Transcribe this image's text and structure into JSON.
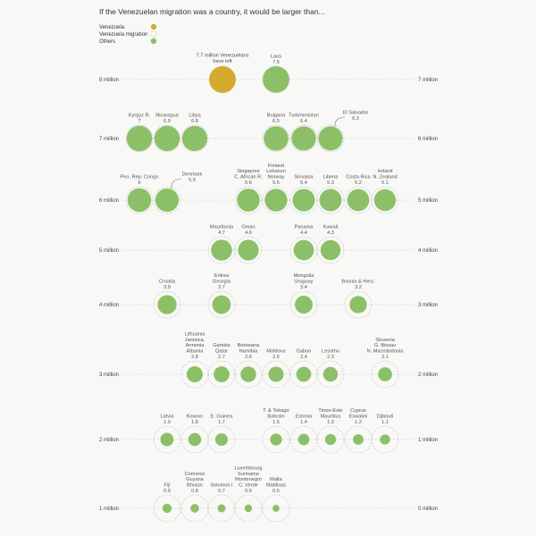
{
  "chart_data": {
    "type": "scatter",
    "title": "If the Venezuelan migration was a country, it would be larger than...",
    "legend": [
      {
        "label": "Venezuela",
        "color": "#d4ab2e"
      },
      {
        "label": "Venezuela migration",
        "color": "none"
      },
      {
        "label": "Others",
        "color": "#8cc068"
      }
    ],
    "colors": {
      "venezuela": "#d4ab2e",
      "others": "#8cc068"
    },
    "rows": [
      {
        "left": "8 million",
        "right": "7 million",
        "items": [
          {
            "lines": [
              "7.7 million Venezuelans",
              "have left"
            ],
            "value": 7.7,
            "kind": "venezuela"
          },
          {
            "lines": [
              "Laos"
            ],
            "value": 7.5,
            "kind": "others"
          }
        ]
      },
      {
        "left": "7 million",
        "right": "6 million",
        "items": [
          {
            "lines": [
              "Kyrgyz R."
            ],
            "value": 7,
            "kind": "others"
          },
          {
            "lines": [
              "Nicaragua"
            ],
            "value": 6.9,
            "kind": "others"
          },
          {
            "lines": [
              "Libya"
            ],
            "value": 6.8,
            "kind": "others"
          },
          {
            "lines": [
              "Bulgaria"
            ],
            "value": 6.5,
            "kind": "others"
          },
          {
            "lines": [
              "Turkmenistan"
            ],
            "value": 6.4,
            "kind": "others"
          },
          {
            "lines": [
              "El Salvador"
            ],
            "value": 6.3,
            "kind": "others",
            "callout": true
          }
        ]
      },
      {
        "left": "6 million",
        "right": "5 million",
        "items": [
          {
            "lines": [
              "Peo. Rep. Congo"
            ],
            "value": 6,
            "kind": "others"
          },
          {
            "lines": [
              "Denmark"
            ],
            "value": 5.9,
            "kind": "others",
            "callout": true
          },
          {
            "lines": [
              "Singapore",
              "C. African R."
            ],
            "value": 5.6,
            "kind": "others"
          },
          {
            "lines": [
              "Finland",
              "Lebanon",
              "Norway"
            ],
            "value": 5.5,
            "kind": "others"
          },
          {
            "lines": [
              "Slovakia"
            ],
            "value": 5.4,
            "kind": "others"
          },
          {
            "lines": [
              "Liberia"
            ],
            "value": 5.3,
            "kind": "others"
          },
          {
            "lines": [
              "Costa Rica"
            ],
            "value": 5.2,
            "kind": "others"
          },
          {
            "lines": [
              "Ireland",
              "N. Zealand"
            ],
            "value": 5.1,
            "kind": "others"
          }
        ]
      },
      {
        "left": "5 million",
        "right": "4 million",
        "items": [
          {
            "lines": [
              "Mauritania"
            ],
            "value": 4.7,
            "kind": "others"
          },
          {
            "lines": [
              "Oman"
            ],
            "value": 4.6,
            "kind": "others"
          },
          {
            "lines": [
              "Panama"
            ],
            "value": 4.4,
            "kind": "others"
          },
          {
            "lines": [
              "Kuwait"
            ],
            "value": 4.3,
            "kind": "others"
          }
        ]
      },
      {
        "left": "4 million",
        "right": "3 million",
        "items": [
          {
            "lines": [
              "Croatia"
            ],
            "value": 3.9,
            "kind": "others"
          },
          {
            "lines": [
              "Eritrea",
              "Georgia"
            ],
            "value": 3.7,
            "kind": "others"
          },
          {
            "lines": [
              "Mongolia",
              "Uruguay"
            ],
            "value": 3.4,
            "kind": "others"
          },
          {
            "lines": [
              "Bosnia & Herz."
            ],
            "value": 3.2,
            "kind": "others"
          }
        ]
      },
      {
        "left": "3 million",
        "right": "2 million",
        "items": [
          {
            "lines": [
              "Lithuania",
              "Jamaica,",
              "Armenia",
              "Albania"
            ],
            "value": 2.8,
            "kind": "others"
          },
          {
            "lines": [
              "Gambia",
              "Qatar"
            ],
            "value": 2.7,
            "kind": "others"
          },
          {
            "lines": [
              "Botswana",
              "Namibia"
            ],
            "value": 2.6,
            "kind": "others"
          },
          {
            "lines": [
              "Moldova"
            ],
            "value": 2.5,
            "kind": "others"
          },
          {
            "lines": [
              "Gabon"
            ],
            "value": 2.4,
            "kind": "others"
          },
          {
            "lines": [
              "Lesotho"
            ],
            "value": 2.3,
            "kind": "others"
          },
          {
            "lines": [
              "Slovenia",
              "G. Bissau",
              "N. Macedodonia"
            ],
            "value": 2.1,
            "kind": "others"
          }
        ]
      },
      {
        "left": "2 million",
        "right": "1 million",
        "items": [
          {
            "lines": [
              "Latvia"
            ],
            "value": 1.9,
            "kind": "others"
          },
          {
            "lines": [
              "Kosovo"
            ],
            "value": 1.8,
            "kind": "others"
          },
          {
            "lines": [
              "E. Guinea"
            ],
            "value": 1.7,
            "kind": "others"
          },
          {
            "lines": [
              "T. & Tobago",
              "Bahrain"
            ],
            "value": 1.5,
            "kind": "others"
          },
          {
            "lines": [
              "Estonia"
            ],
            "value": 1.4,
            "kind": "others"
          },
          {
            "lines": [
              "Timor-Este",
              "Mauritius"
            ],
            "value": 1.3,
            "kind": "others"
          },
          {
            "lines": [
              "Cyprus",
              "Eswatini"
            ],
            "value": 1.2,
            "kind": "others"
          },
          {
            "lines": [
              "Djibouti"
            ],
            "value": 1.1,
            "kind": "others"
          }
        ]
      },
      {
        "left": "1 million",
        "right": "0 million",
        "items": [
          {
            "lines": [
              "Fiji"
            ],
            "value": 0.9,
            "kind": "others"
          },
          {
            "lines": [
              "Comoros",
              "Guyana",
              "Bhutan"
            ],
            "value": 0.8,
            "kind": "others"
          },
          {
            "lines": [
              "Solomon I"
            ],
            "value": 0.7,
            "kind": "others"
          },
          {
            "lines": [
              "Luxembourg",
              "Suriname",
              "Montenegro",
              "C. Verde"
            ],
            "value": 0.6,
            "kind": "others"
          },
          {
            "lines": [
              "Malta",
              "Maldivas"
            ],
            "value": 0.5,
            "kind": "others"
          }
        ]
      }
    ]
  }
}
